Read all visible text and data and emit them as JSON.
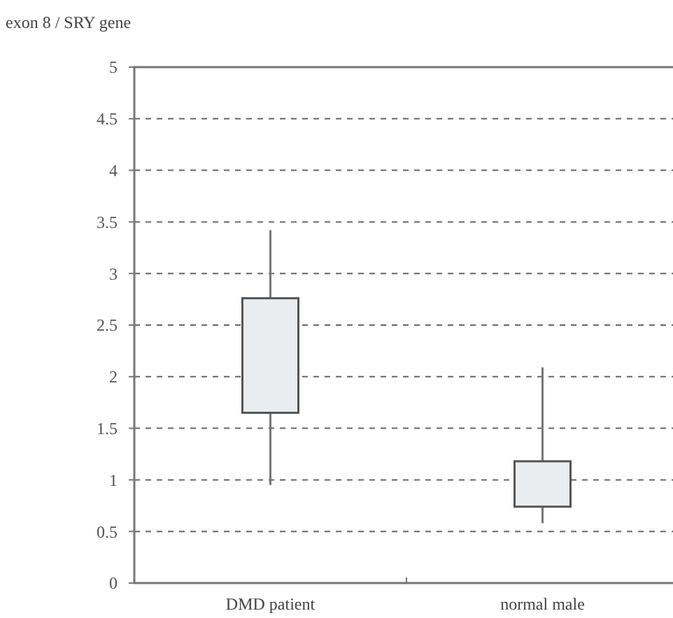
{
  "chart_data": {
    "type": "box",
    "ylabel": "exon 8 / SRY gene",
    "categories": [
      "DMD patient",
      "normal male"
    ],
    "boxes": [
      {
        "low": 0.95,
        "q1": 1.65,
        "q3": 2.76,
        "high": 3.42
      },
      {
        "low": 0.58,
        "q1": 0.74,
        "q3": 1.18,
        "high": 2.09
      }
    ],
    "color": "#e9edef",
    "ylim": [
      0,
      5
    ],
    "yticks": [
      0,
      0.5,
      1,
      1.5,
      2,
      2.5,
      3,
      3.5,
      4,
      4.5,
      5
    ],
    "grid": "y",
    "line_style": "dashed"
  }
}
